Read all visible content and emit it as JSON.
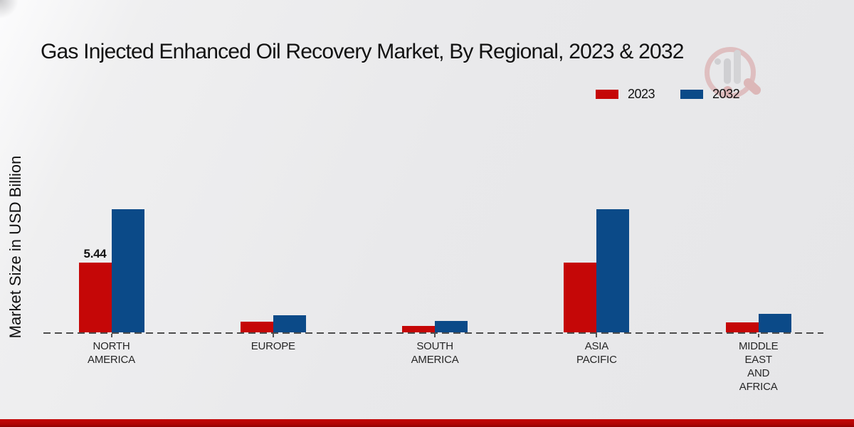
{
  "page": {
    "title": "Gas Injected Enhanced Oil Recovery Market, By Regional, 2023 & 2032",
    "y_axis_label": "Market Size in USD Billion"
  },
  "legend": {
    "items": [
      {
        "label": "2023",
        "color": "#c50707"
      },
      {
        "label": "2032",
        "color": "#0b4a88"
      }
    ]
  },
  "footer": {
    "accent_color": "#b50606"
  },
  "watermark": {
    "icon": "market-research-magnifier-logo"
  },
  "chart_data": {
    "type": "bar",
    "title": "Gas Injected Enhanced Oil Recovery Market, By Regional, 2023 & 2032",
    "xlabel": "",
    "ylabel": "Market Size in USD Billion",
    "categories": [
      "NORTH AMERICA",
      "EUROPE",
      "SOUTH AMERICA",
      "ASIA PACIFIC",
      "MIDDLE EAST AND AFRICA"
    ],
    "category_label_lines": [
      [
        "NORTH",
        "AMERICA"
      ],
      [
        "EUROPE"
      ],
      [
        "SOUTH",
        "AMERICA"
      ],
      [
        "ASIA",
        "PACIFIC"
      ],
      [
        "MIDDLE",
        "EAST",
        "AND",
        "AFRICA"
      ]
    ],
    "series": [
      {
        "name": "2023",
        "color": "#c50707",
        "values": [
          5.44,
          0.85,
          0.48,
          5.42,
          0.8
        ]
      },
      {
        "name": "2032",
        "color": "#0b4a88",
        "values": [
          9.6,
          1.35,
          0.9,
          9.6,
          1.45
        ]
      }
    ],
    "data_labels": [
      {
        "series_index": 0,
        "category_index": 0,
        "text": "5.44"
      }
    ],
    "ylim": [
      0,
      11
    ],
    "grid": false,
    "y_axis_ticks_visible": false,
    "baseline_style": "dashed",
    "legend_position": "top-right"
  }
}
